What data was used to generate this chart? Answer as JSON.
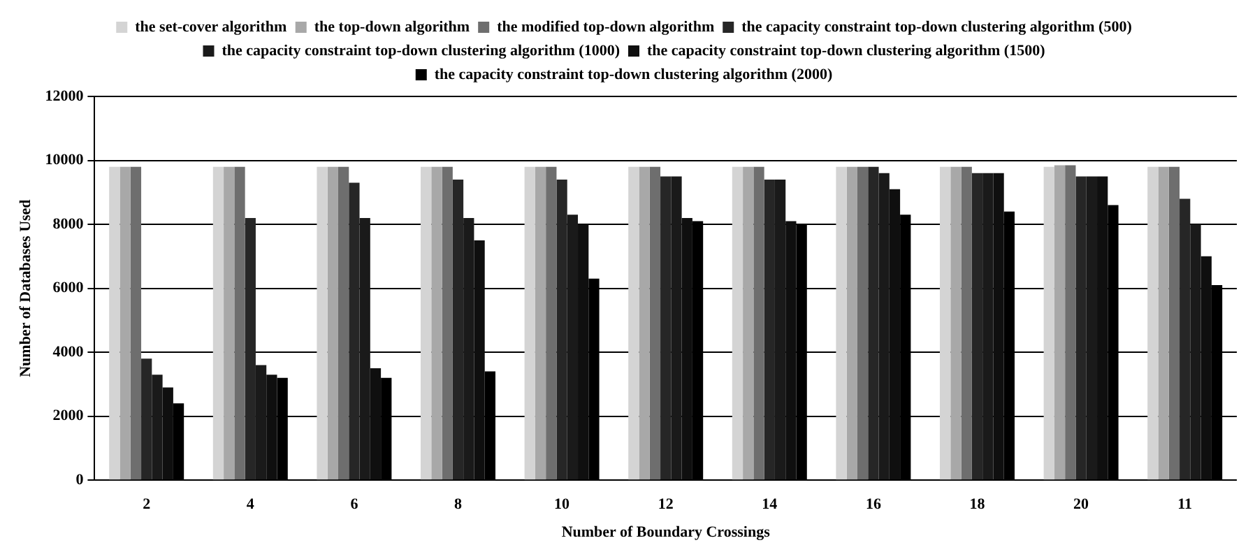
{
  "chart_data": {
    "type": "bar",
    "xlabel": "Number of Boundary Crossings",
    "ylabel": "Number of Databases Used",
    "categories": [
      "2",
      "4",
      "6",
      "8",
      "10",
      "12",
      "14",
      "16",
      "18",
      "20",
      "11"
    ],
    "series": [
      {
        "name": "the set-cover algorithm",
        "color": "#d4d4d4",
        "values": [
          9800,
          9800,
          9800,
          9800,
          9800,
          9800,
          9800,
          9800,
          9800,
          9800,
          9800
        ]
      },
      {
        "name": "the top-down algorithm",
        "color": "#a8a8a8",
        "values": [
          9800,
          9800,
          9800,
          9800,
          9800,
          9800,
          9800,
          9800,
          9800,
          9850,
          9800
        ]
      },
      {
        "name": "the modified top-down algorithm",
        "color": "#6e6e6e",
        "values": [
          9800,
          9800,
          9800,
          9800,
          9800,
          9800,
          9800,
          9800,
          9800,
          9850,
          9800
        ]
      },
      {
        "name": "the capacity constraint top-down clustering algorithm (500)",
        "color": "#262626",
        "values": [
          3800,
          8200,
          9300,
          9400,
          9400,
          9500,
          9400,
          9800,
          9600,
          9500,
          8800
        ]
      },
      {
        "name": "the capacity constraint top-down clustering algorithm (1000)",
        "color": "#1a1a1a",
        "values": [
          3300,
          3600,
          8200,
          8200,
          8300,
          9500,
          9400,
          9600,
          9600,
          9500,
          8000
        ]
      },
      {
        "name": "the capacity constraint top-down clustering algorithm (1500)",
        "color": "#0f0f0f",
        "values": [
          2900,
          3300,
          3500,
          7500,
          8000,
          8200,
          8100,
          9100,
          9600,
          9500,
          7000
        ]
      },
      {
        "name": "the capacity constraint top-down clustering algorithm (2000)",
        "color": "#000000",
        "values": [
          2400,
          3200,
          3200,
          3400,
          6300,
          8100,
          8000,
          8300,
          8400,
          8600,
          6100
        ]
      }
    ],
    "ylim": [
      0,
      12000
    ],
    "yticks": [
      0,
      2000,
      4000,
      6000,
      8000,
      10000,
      12000
    ],
    "grid": "y",
    "legend": "top"
  }
}
